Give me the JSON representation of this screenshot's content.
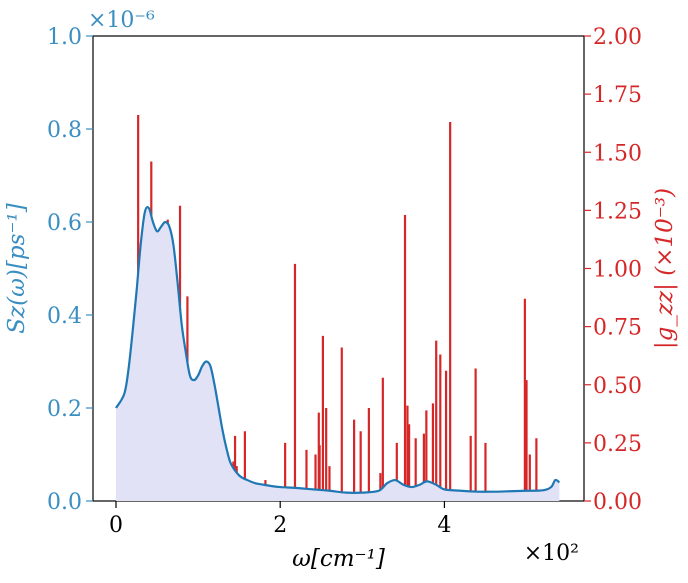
{
  "chart_data": {
    "type": "line",
    "title": "",
    "xlabel": "ω[cm⁻¹]",
    "x_multiplier": "×10²",
    "xlim": [
      -0.28,
      5.7
    ],
    "x_ticks": [
      0,
      2,
      4
    ],
    "x_tick_labels": [
      "0",
      "2",
      "4"
    ],
    "ylabel_left": "Sz(ω)[ps⁻¹]",
    "left_multiplier": "×10⁻⁶",
    "ylim_left": [
      0,
      1.0
    ],
    "left_ticks": [
      0,
      0.2,
      0.4,
      0.6,
      0.8,
      1.0
    ],
    "left_tick_labels": [
      "0.0",
      "0.2",
      "0.4",
      "0.6",
      "0.8",
      "1.0"
    ],
    "ylabel_right": "|g_zz| (×10⁻³)",
    "ylim_right": [
      0,
      2.0
    ],
    "right_ticks": [
      0,
      0.25,
      0.5,
      0.75,
      1.0,
      1.25,
      1.5,
      1.75,
      2.0
    ],
    "right_tick_labels": [
      "0.00",
      "0.25",
      "0.50",
      "0.75",
      "1.00",
      "1.25",
      "1.50",
      "1.75",
      "2.00"
    ],
    "colors": {
      "left": "#3a8ec2",
      "line": "#1f77b4",
      "fill": "#e2e2f7",
      "bars": "#d62728"
    },
    "series": [
      {
        "name": "Sz(ω)",
        "axis": "left",
        "kind": "line-filled",
        "x": [
          0.0,
          0.1,
          0.15,
          0.2,
          0.25,
          0.3,
          0.35,
          0.4,
          0.45,
          0.5,
          0.55,
          0.6,
          0.65,
          0.7,
          0.75,
          0.8,
          0.85,
          0.9,
          0.95,
          1.0,
          1.05,
          1.1,
          1.15,
          1.2,
          1.25,
          1.3,
          1.35,
          1.4,
          1.5,
          1.6,
          1.7,
          1.8,
          1.9,
          2.0,
          2.2,
          2.4,
          2.6,
          2.8,
          3.0,
          3.2,
          3.3,
          3.4,
          3.5,
          3.6,
          3.7,
          3.75,
          3.8,
          3.9,
          4.0,
          4.2,
          4.4,
          4.6,
          4.8,
          5.0,
          5.2,
          5.3,
          5.35,
          5.4
        ],
        "y": [
          0.2,
          0.23,
          0.28,
          0.36,
          0.45,
          0.55,
          0.62,
          0.63,
          0.6,
          0.58,
          0.59,
          0.6,
          0.59,
          0.55,
          0.47,
          0.38,
          0.32,
          0.27,
          0.26,
          0.27,
          0.29,
          0.3,
          0.29,
          0.25,
          0.2,
          0.15,
          0.11,
          0.08,
          0.055,
          0.045,
          0.038,
          0.035,
          0.032,
          0.03,
          0.028,
          0.025,
          0.022,
          0.018,
          0.018,
          0.022,
          0.038,
          0.045,
          0.035,
          0.03,
          0.035,
          0.04,
          0.042,
          0.035,
          0.025,
          0.022,
          0.02,
          0.02,
          0.021,
          0.022,
          0.023,
          0.03,
          0.045,
          0.04
        ]
      },
      {
        "name": "|g_zz|",
        "axis": "right",
        "kind": "stem",
        "x": [
          0.13,
          0.27,
          0.43,
          0.45,
          0.63,
          0.74,
          0.78,
          0.83,
          0.87,
          1.05,
          1.38,
          1.43,
          1.45,
          1.47,
          1.57,
          1.82,
          2.06,
          2.18,
          2.32,
          2.43,
          2.47,
          2.48,
          2.52,
          2.56,
          2.6,
          2.75,
          2.9,
          2.98,
          3.08,
          3.22,
          3.25,
          3.42,
          3.52,
          3.55,
          3.57,
          3.65,
          3.75,
          3.78,
          3.86,
          3.9,
          3.95,
          4.02,
          4.07,
          4.32,
          4.38,
          4.5,
          4.98,
          5.0,
          5.04,
          5.12
        ],
        "y": [
          0.34,
          1.66,
          1.46,
          1.12,
          1.21,
          0.58,
          1.27,
          0.56,
          0.88,
          0.26,
          0.08,
          0.17,
          0.28,
          0.15,
          0.3,
          0.09,
          0.25,
          1.02,
          0.22,
          0.2,
          0.38,
          0.24,
          0.71,
          0.4,
          0.15,
          0.66,
          0.35,
          0.3,
          0.4,
          0.12,
          0.53,
          0.25,
          1.23,
          0.41,
          0.33,
          0.27,
          0.29,
          0.39,
          0.42,
          0.69,
          0.63,
          0.56,
          1.63,
          0.28,
          0.57,
          0.25,
          0.87,
          0.52,
          0.2,
          0.27
        ]
      }
    ]
  }
}
